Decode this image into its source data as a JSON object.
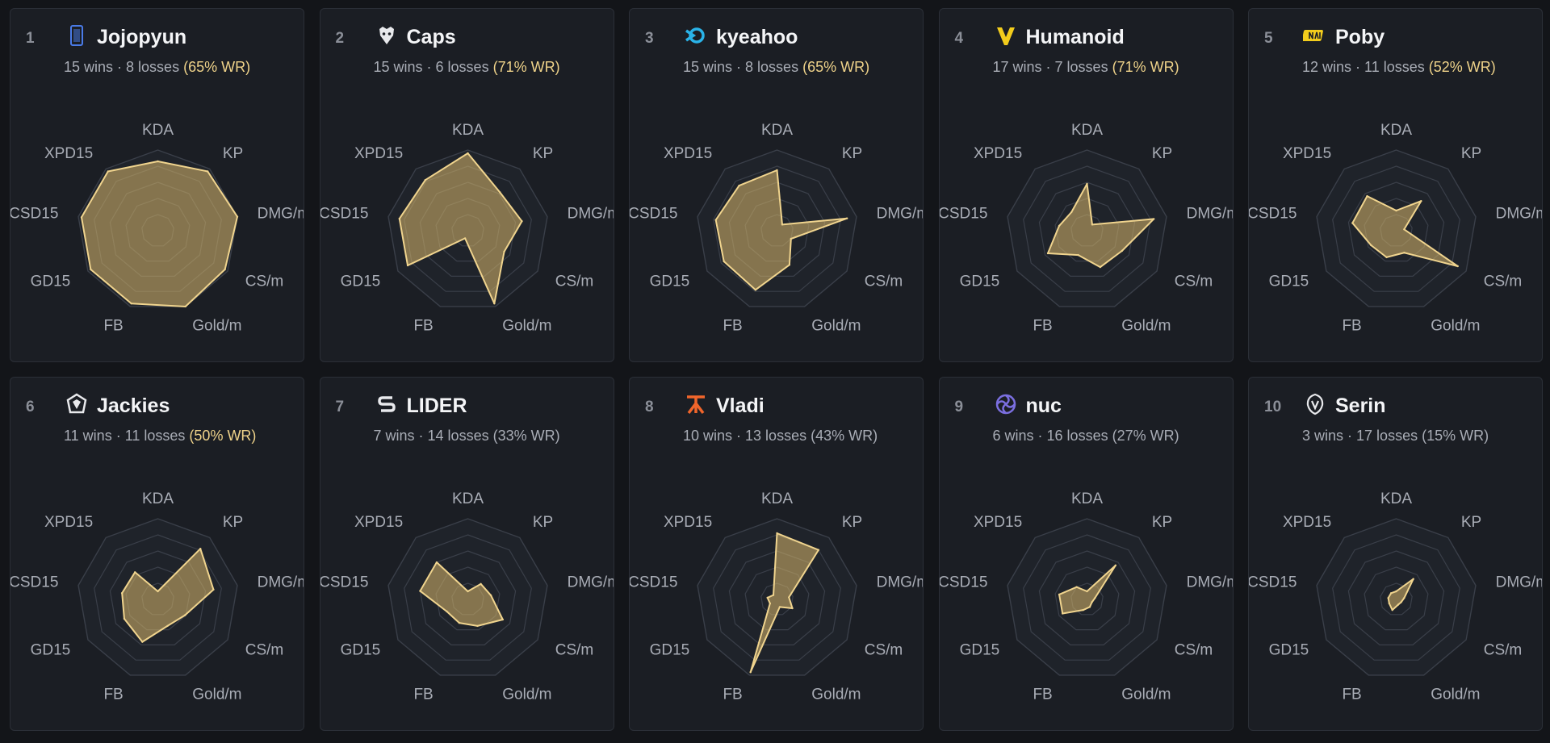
{
  "axis_labels": [
    "KDA",
    "KP",
    "DMG/m",
    "CS/m",
    "Gold/m",
    "FB",
    "GD15",
    "CSD15",
    "XPD15"
  ],
  "record_sep": "·",
  "colors": {
    "fill": "#d9b86b",
    "stroke": "#f0d48e",
    "grid": "#3a3f49",
    "wr_highlight": "#efd38a"
  },
  "chart_data": [
    {
      "type": "radar",
      "rank": "1",
      "player": "Jojopyun",
      "logo_icon": "team-badge-icon",
      "wins": "15 wins",
      "losses": "8 losses",
      "wr": "(65% WR)",
      "wr_highlight": true,
      "values": [
        0.86,
        0.96,
        1.0,
        0.96,
        1.0,
        0.96,
        0.96,
        0.96,
        0.96
      ]
    },
    {
      "type": "radar",
      "rank": "2",
      "player": "Caps",
      "logo_icon": "g2-icon",
      "wins": "15 wins",
      "losses": "6 losses",
      "wr": "(71% WR)",
      "wr_highlight": true,
      "values": [
        0.96,
        0.62,
        0.68,
        0.52,
        0.96,
        0.1,
        0.86,
        0.86,
        0.82
      ]
    },
    {
      "type": "radar",
      "rank": "3",
      "player": "kyeahoo",
      "logo_icon": "kt-icon",
      "wins": "15 wins",
      "losses": "8 losses",
      "wr": "(65% WR)",
      "wr_highlight": true,
      "values": [
        0.75,
        0.1,
        0.88,
        0.2,
        0.45,
        0.78,
        0.76,
        0.77,
        0.73
      ]
    },
    {
      "type": "radar",
      "rank": "4",
      "player": "Humanoid",
      "logo_icon": "vitality-icon",
      "wins": "17 wins",
      "losses": "7 losses",
      "wr": "(71% WR)",
      "wr_highlight": true,
      "values": [
        0.58,
        0.1,
        0.84,
        0.5,
        0.48,
        0.32,
        0.56,
        0.35,
        0.3
      ]
    },
    {
      "type": "radar",
      "rank": "5",
      "player": "Poby",
      "logo_icon": "navi-icon",
      "wins": "12 wins",
      "losses": "11 losses",
      "wr": "(52% WR)",
      "wr_highlight": true,
      "values": [
        0.25,
        0.48,
        0.1,
        0.88,
        0.29,
        0.35,
        0.36,
        0.55,
        0.56
      ]
    },
    {
      "type": "radar",
      "rank": "6",
      "player": "Jackies",
      "logo_icon": "team-heretics-icon",
      "wins": "11 wins",
      "losses": "11 losses",
      "wr": "(50% WR)",
      "wr_highlight": true,
      "values": [
        0.1,
        0.82,
        0.7,
        0.39,
        0.35,
        0.56,
        0.48,
        0.45,
        0.44
      ]
    },
    {
      "type": "radar",
      "rank": "7",
      "player": "LIDER",
      "logo_icon": "sk-icon",
      "wins": "7 wins",
      "losses": "14 losses",
      "wr": "(33% WR)",
      "wr_highlight": false,
      "values": [
        0.1,
        0.25,
        0.29,
        0.5,
        0.35,
        0.31,
        0.3,
        0.6,
        0.6
      ]
    },
    {
      "type": "radar",
      "rank": "8",
      "player": "Vladi",
      "logo_icon": "fnatic-icon",
      "wins": "10 wins",
      "losses": "13 losses",
      "wr": "(43% WR)",
      "wr_highlight": false,
      "values": [
        0.82,
        0.8,
        0.15,
        0.22,
        0.1,
        0.96,
        0.1,
        0.12,
        0.07
      ]
    },
    {
      "type": "radar",
      "rank": "9",
      "player": "nuc",
      "logo_icon": "gamer-legion-icon",
      "wins": "6 wins",
      "losses": "16 losses",
      "wr": "(27% WR)",
      "wr_highlight": false,
      "values": [
        0.1,
        0.55,
        0.1,
        0.07,
        0.1,
        0.14,
        0.35,
        0.35,
        0.2
      ]
    },
    {
      "type": "radar",
      "rank": "10",
      "player": "Serin",
      "logo_icon": "team-bds-icon",
      "wins": "3 wins",
      "losses": "17 losses",
      "wr": "(15% WR)",
      "wr_highlight": false,
      "values": [
        0.1,
        0.33,
        0.1,
        0.07,
        0.07,
        0.14,
        0.1,
        0.1,
        0.1
      ]
    }
  ]
}
